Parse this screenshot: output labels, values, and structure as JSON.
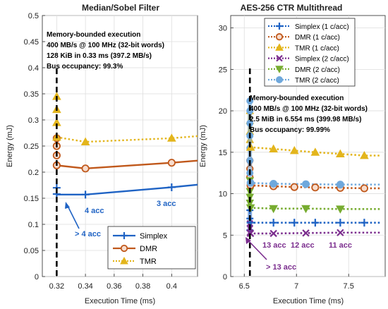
{
  "chart_data": [
    {
      "type": "line",
      "title": "Median/Sobel Filter",
      "xlabel": "Execution Time (ms)",
      "ylabel": "Energy (mJ)",
      "xlim": [
        0.31,
        0.418
      ],
      "ylim": [
        0,
        0.5
      ],
      "xticks": [
        "0.32",
        "0.34",
        "0.36",
        "0.38",
        "0.4"
      ],
      "xtick_values": [
        0.32,
        0.34,
        0.36,
        0.38,
        0.4
      ],
      "yticks": [
        "0",
        "0.05",
        "0.1",
        "0.15",
        "0.2",
        "0.25",
        "0.3",
        "0.35",
        "0.4",
        "0.45",
        "0.5"
      ],
      "ytick_values": [
        0,
        0.05,
        0.1,
        0.15,
        0.2,
        0.25,
        0.3,
        0.35,
        0.4,
        0.45,
        0.5
      ],
      "grid": true,
      "bound_x": 0.32,
      "legend_position": "bottom-right",
      "series": [
        {
          "name": "Simplex",
          "color": "#1f63c4",
          "marker": "plus",
          "line": "solid",
          "marker_points": [
            [
              0.32,
              0.158
            ],
            [
              0.32,
              0.17
            ],
            [
              0.34,
              0.157
            ],
            [
              0.4,
              0.171
            ]
          ],
          "line_points": [
            [
              0.32,
              0.157
            ],
            [
              0.34,
              0.157
            ],
            [
              0.4,
              0.171
            ],
            [
              0.418,
              0.176
            ]
          ]
        },
        {
          "name": "DMR",
          "color": "#c0581b",
          "marker": "circle",
          "line": "solid",
          "marker_points": [
            [
              0.32,
              0.213
            ],
            [
              0.32,
              0.232
            ],
            [
              0.32,
              0.25
            ],
            [
              0.32,
              0.265
            ],
            [
              0.34,
              0.207
            ],
            [
              0.4,
              0.218
            ]
          ],
          "line_points": [
            [
              0.32,
              0.213
            ],
            [
              0.34,
              0.207
            ],
            [
              0.4,
              0.218
            ],
            [
              0.418,
              0.222
            ]
          ]
        },
        {
          "name": "TMR",
          "color": "#e3b51c",
          "marker": "triangle",
          "line": "dotted",
          "marker_points": [
            [
              0.32,
              0.267
            ],
            [
              0.32,
              0.295
            ],
            [
              0.32,
              0.32
            ],
            [
              0.32,
              0.345
            ],
            [
              0.34,
              0.258
            ],
            [
              0.4,
              0.265
            ]
          ],
          "line_points": [
            [
              0.32,
              0.267
            ],
            [
              0.34,
              0.258
            ],
            [
              0.4,
              0.265
            ],
            [
              0.418,
              0.269
            ]
          ]
        }
      ],
      "info_box": {
        "line1": "Memory-bounded execution",
        "line2": "400 MB/s @ 100 MHz (32-bit words)",
        "line3": "128 KiB in 0.33 ms (397.2 MB/s)",
        "line4": "Bus occupancy: 99.3%"
      },
      "annotations": [
        {
          "text": "4 acc",
          "color": "#1f63c4"
        },
        {
          "text": "3 acc",
          "color": "#1f63c4"
        },
        {
          "text": "> 4 acc",
          "color": "#1f63c4"
        }
      ]
    },
    {
      "type": "line",
      "title": "AES-256 CTR Multithread",
      "xlabel": "Execution Time (ms)",
      "ylabel": "Energy (mJ)",
      "xlim": [
        6.37,
        7.85
      ],
      "ylim": [
        0,
        31.5
      ],
      "xticks": [
        "6.5",
        "7",
        "7.5"
      ],
      "xtick_values": [
        6.5,
        7,
        7.5
      ],
      "yticks": [
        "0",
        "5",
        "10",
        "15",
        "20",
        "25",
        "30"
      ],
      "ytick_values": [
        0,
        5,
        10,
        15,
        20,
        25,
        30
      ],
      "grid": true,
      "bound_x": 6.554,
      "legend_position": "top-right",
      "series": [
        {
          "name": "Simplex (1 c/acc)",
          "color": "#1f63c4",
          "marker": "plus",
          "line": "dotted",
          "points": [
            [
              6.56,
              6.5
            ],
            [
              6.78,
              6.5
            ],
            [
              6.98,
              6.5
            ],
            [
              7.18,
              6.5
            ],
            [
              7.42,
              6.5
            ],
            [
              7.65,
              6.5
            ]
          ]
        },
        {
          "name": "DMR (1 c/acc)",
          "color": "#c0581b",
          "marker": "circle",
          "line": "dotted",
          "points": [
            [
              6.56,
              11.0
            ],
            [
              6.78,
              10.9
            ],
            [
              6.98,
              10.8
            ],
            [
              7.18,
              10.75
            ],
            [
              7.42,
              10.7
            ],
            [
              7.65,
              10.65
            ]
          ]
        },
        {
          "name": "TMR (1 c/acc)",
          "color": "#e3b51c",
          "marker": "triangle",
          "line": "dotted",
          "points": [
            [
              6.56,
              15.6
            ],
            [
              6.78,
              15.4
            ],
            [
              6.98,
              15.2
            ],
            [
              7.18,
              15.0
            ],
            [
              7.42,
              14.8
            ],
            [
              7.65,
              14.6
            ]
          ]
        },
        {
          "name": "Simplex (2 c/acc)",
          "color": "#7b2d8e",
          "marker": "x",
          "line": "dotted",
          "points": [
            [
              6.56,
              5.2
            ],
            [
              6.78,
              5.2
            ],
            [
              7.09,
              5.25
            ],
            [
              7.42,
              5.3
            ]
          ]
        },
        {
          "name": "DMR (2 c/acc)",
          "color": "#77ac30",
          "marker": "triangle-down",
          "line": "dotted",
          "points": [
            [
              6.56,
              8.3
            ],
            [
              6.78,
              8.2
            ],
            [
              7.09,
              8.2
            ],
            [
              7.42,
              8.15
            ]
          ]
        },
        {
          "name": "TMR (2 c/acc)",
          "color": "#6fa8dc",
          "marker": "dot",
          "line": "dotted",
          "points": [
            [
              6.56,
              11.3
            ],
            [
              6.78,
              11.2
            ],
            [
              7.09,
              11.15
            ],
            [
              7.42,
              11.1
            ]
          ]
        }
      ],
      "bound_column": {
        "x": 6.554,
        "points": [
          {
            "series": 0,
            "ys": [
              5.6,
              7.0,
              8.0
            ]
          },
          {
            "series": 1,
            "ys": [
              12.0,
              13.0,
              14.0
            ]
          },
          {
            "series": 2,
            "ys": [
              16.5,
              17.5,
              18.8,
              20.0
            ]
          },
          {
            "series": 3,
            "ys": [
              5.3,
              5.8,
              6.4
            ]
          },
          {
            "series": 4,
            "ys": [
              8.9,
              9.6,
              10.3,
              11.6
            ]
          },
          {
            "series": 5,
            "ys": [
              12.5,
              14.0,
              15.5,
              17.0,
              18.5,
              20.0,
              21.2
            ]
          }
        ]
      },
      "info_box": {
        "line1": "Memory-bounded execution",
        "line2": "400 MB/s @ 100 MHz (32-bit words)",
        "line3": "2.5 MiB in 6.554 ms (399.98 MB/s)",
        "line4": "Bus occupancy: 99.99%"
      },
      "annotations": [
        {
          "text": "13 acc",
          "color": "#7b2d8e"
        },
        {
          "text": "12 acc",
          "color": "#7b2d8e"
        },
        {
          "text": "11 acc",
          "color": "#7b2d8e"
        },
        {
          "text": "> 13 acc",
          "color": "#7b2d8e"
        }
      ]
    }
  ]
}
